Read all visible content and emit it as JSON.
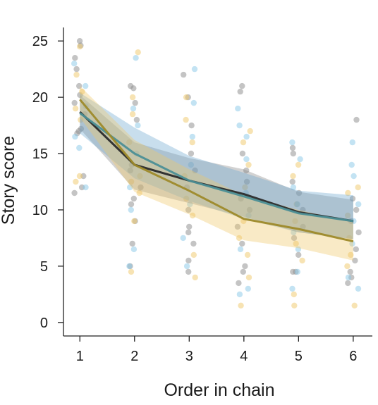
{
  "chart_data": {
    "type": "line",
    "xlabel": "Order in chain",
    "ylabel": "Story score",
    "x_ticks": [
      1,
      2,
      3,
      4,
      5,
      6
    ],
    "y_ticks": [
      0,
      5,
      10,
      15,
      20,
      25
    ],
    "xlim": [
      0.7,
      6.35
    ],
    "ylim": [
      -1.2,
      26.2
    ],
    "grid": false,
    "series": [
      {
        "color": "#2b2b2b",
        "band_color": "#8a8a8a",
        "x": [
          1,
          2,
          3,
          4,
          5,
          6
        ],
        "values": [
          18.7,
          14.0,
          12.6,
          11.4,
          9.8,
          9.0
        ],
        "band_low": [
          17.2,
          11.8,
          10.6,
          9.4,
          8.0,
          7.4
        ],
        "band_high": [
          20.2,
          16.0,
          14.6,
          13.6,
          11.6,
          10.9
        ]
      },
      {
        "color": "#4c8f96",
        "band_color": "#6ea8cf",
        "x": [
          1,
          2,
          3,
          4,
          5,
          6
        ],
        "values": [
          18.6,
          15.0,
          12.6,
          11.2,
          9.7,
          9.0
        ],
        "band_low": [
          16.8,
          12.8,
          10.8,
          9.2,
          8.0,
          7.4
        ],
        "band_high": [
          20.4,
          17.3,
          14.8,
          13.3,
          11.7,
          11.3
        ]
      },
      {
        "color": "#9e8a2a",
        "band_color": "#f0c868",
        "x": [
          1,
          2,
          3,
          4,
          5,
          6
        ],
        "values": [
          19.8,
          14.0,
          11.7,
          9.2,
          8.3,
          7.2
        ],
        "band_low": [
          18.2,
          11.6,
          9.6,
          7.3,
          6.6,
          5.5
        ],
        "band_high": [
          21.0,
          16.2,
          13.6,
          11.3,
          10.0,
          8.9
        ]
      }
    ],
    "points": [
      {
        "color": "#8a8a8a",
        "x": 1,
        "y": [
          25.0,
          24.6,
          23.5,
          22.5,
          21.0,
          20.2,
          19.5,
          18.5,
          17.2,
          17.0,
          16.8,
          13.0,
          12.0,
          11.5
        ]
      },
      {
        "color": "#f0c868",
        "x": 1,
        "y": [
          24.5,
          22.0,
          20.5,
          19.0,
          18.0,
          13.0,
          12.5
        ]
      },
      {
        "color": "#87c8e8",
        "x": 1,
        "y": [
          23.0,
          21.0,
          19.2,
          16.5,
          15.5,
          12.0
        ]
      },
      {
        "color": "#8a8a8a",
        "x": 2,
        "y": [
          21.0,
          20.8,
          19.5,
          18.0,
          14.0,
          13.5,
          12.0,
          11.0,
          10.5,
          9.0,
          7.0,
          5.0
        ]
      },
      {
        "color": "#f0c868",
        "x": 2,
        "y": [
          24.0,
          20.0,
          18.5,
          16.0,
          13.0,
          12.5,
          11.5,
          9.0,
          4.5
        ]
      },
      {
        "color": "#87c8e8",
        "x": 2,
        "y": [
          23.5,
          19.0,
          17.5,
          15.0,
          12.0,
          10.0,
          6.5,
          5.0
        ]
      },
      {
        "color": "#8a8a8a",
        "x": 3,
        "y": [
          22.0,
          20.0,
          17.5,
          15.0,
          13.5,
          12.0,
          10.0,
          8.5,
          8.0,
          7.0,
          5.5,
          4.5
        ]
      },
      {
        "color": "#f0c868",
        "x": 3,
        "y": [
          20.0,
          18.0,
          16.0,
          13.0,
          11.0,
          9.5,
          6.0,
          4.0
        ]
      },
      {
        "color": "#87c8e8",
        "x": 3,
        "y": [
          22.5,
          19.5,
          16.5,
          14.0,
          10.5,
          7.5,
          5.0
        ]
      },
      {
        "color": "#8a8a8a",
        "x": 4,
        "y": [
          21.0,
          20.5,
          15.0,
          13.5,
          12.5,
          11.0,
          10.0,
          8.5,
          7.0,
          5.0,
          4.5,
          3.5
        ]
      },
      {
        "color": "#f0c868",
        "x": 4,
        "y": [
          17.0,
          16.0,
          14.0,
          12.0,
          9.0,
          7.5,
          6.0,
          4.0,
          1.5
        ]
      },
      {
        "color": "#87c8e8",
        "x": 4,
        "y": [
          19.0,
          17.5,
          16.5,
          14.5,
          11.5,
          9.5,
          6.5,
          3.0,
          2.5
        ]
      },
      {
        "color": "#8a8a8a",
        "x": 5,
        "y": [
          15.5,
          15.0,
          12.5,
          11.5,
          10.0,
          8.5,
          7.5,
          6.0,
          4.5,
          4.5
        ]
      },
      {
        "color": "#f0c868",
        "x": 5,
        "y": [
          14.0,
          13.0,
          10.5,
          9.0,
          7.0,
          5.5,
          2.5,
          1.5
        ]
      },
      {
        "color": "#87c8e8",
        "x": 5,
        "y": [
          16.0,
          14.5,
          12.0,
          10.5,
          8.0,
          6.5,
          4.5,
          3.0
        ]
      },
      {
        "color": "#8a8a8a",
        "x": 6,
        "y": [
          18.0,
          11.0,
          10.0,
          9.0,
          8.0,
          6.5,
          5.5,
          4.5,
          4.0,
          3.5
        ]
      },
      {
        "color": "#f0c868",
        "x": 6,
        "y": [
          12.0,
          11.5,
          9.5,
          7.5,
          6.0,
          5.0,
          1.5
        ]
      },
      {
        "color": "#87c8e8",
        "x": 6,
        "y": [
          16.0,
          14.0,
          13.0,
          10.5,
          9.0,
          7.0,
          4.0,
          3.0
        ]
      }
    ]
  }
}
